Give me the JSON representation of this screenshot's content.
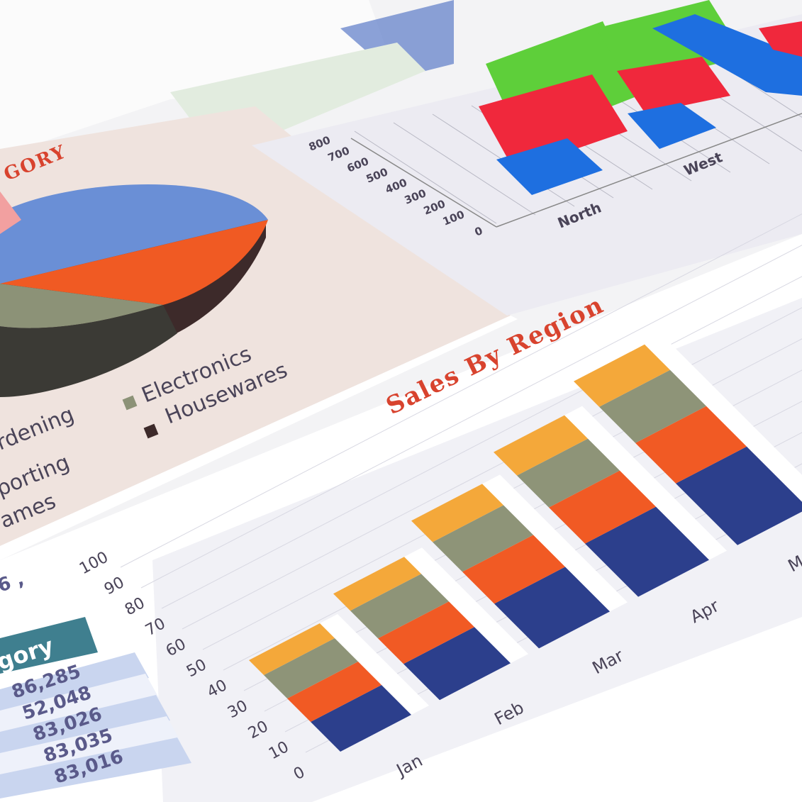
{
  "pie_panel": {
    "title_fragment": "GORY",
    "legend": [
      "rdening",
      "porting",
      "ames",
      "Electronics",
      "Housewares"
    ],
    "colors": {
      "blue": "#6a8fd6",
      "orange": "#f05a23",
      "grey": "#8c9277",
      "dark": "#3d2a2a",
      "pink": "#f2a0a0"
    }
  },
  "bar3d_panel": {
    "y_ticks": [
      "0",
      "100",
      "200",
      "300",
      "400",
      "500",
      "600",
      "700",
      "800"
    ],
    "categories": [
      "North",
      "West"
    ],
    "colors": {
      "green": "#5ecf3a",
      "red": "#f0283c",
      "blue": "#1e6fe0"
    }
  },
  "sales_chart": {
    "title": "Sales By Region",
    "y_ticks": [
      "0",
      "10",
      "20",
      "30",
      "40",
      "50",
      "60",
      "70",
      "80",
      "90",
      "100"
    ],
    "months": [
      "Jan",
      "Feb",
      "Mar",
      "Apr",
      "Ma"
    ],
    "segment_colors": [
      "#2c3f8c",
      "#f15a24",
      "#8e9478",
      "#f4a83a"
    ],
    "stacks": [
      [
        14,
        11,
        11,
        7
      ],
      [
        17,
        12,
        13,
        8
      ],
      [
        21,
        15,
        14,
        10
      ],
      [
        25,
        17,
        15,
        11
      ],
      [
        29,
        19,
        17,
        12
      ]
    ]
  },
  "table": {
    "header": "gory",
    "partial_cell": "6 ,",
    "values": [
      "86,285",
      "52,048",
      "83,026",
      "83,035",
      "83,016"
    ]
  }
}
